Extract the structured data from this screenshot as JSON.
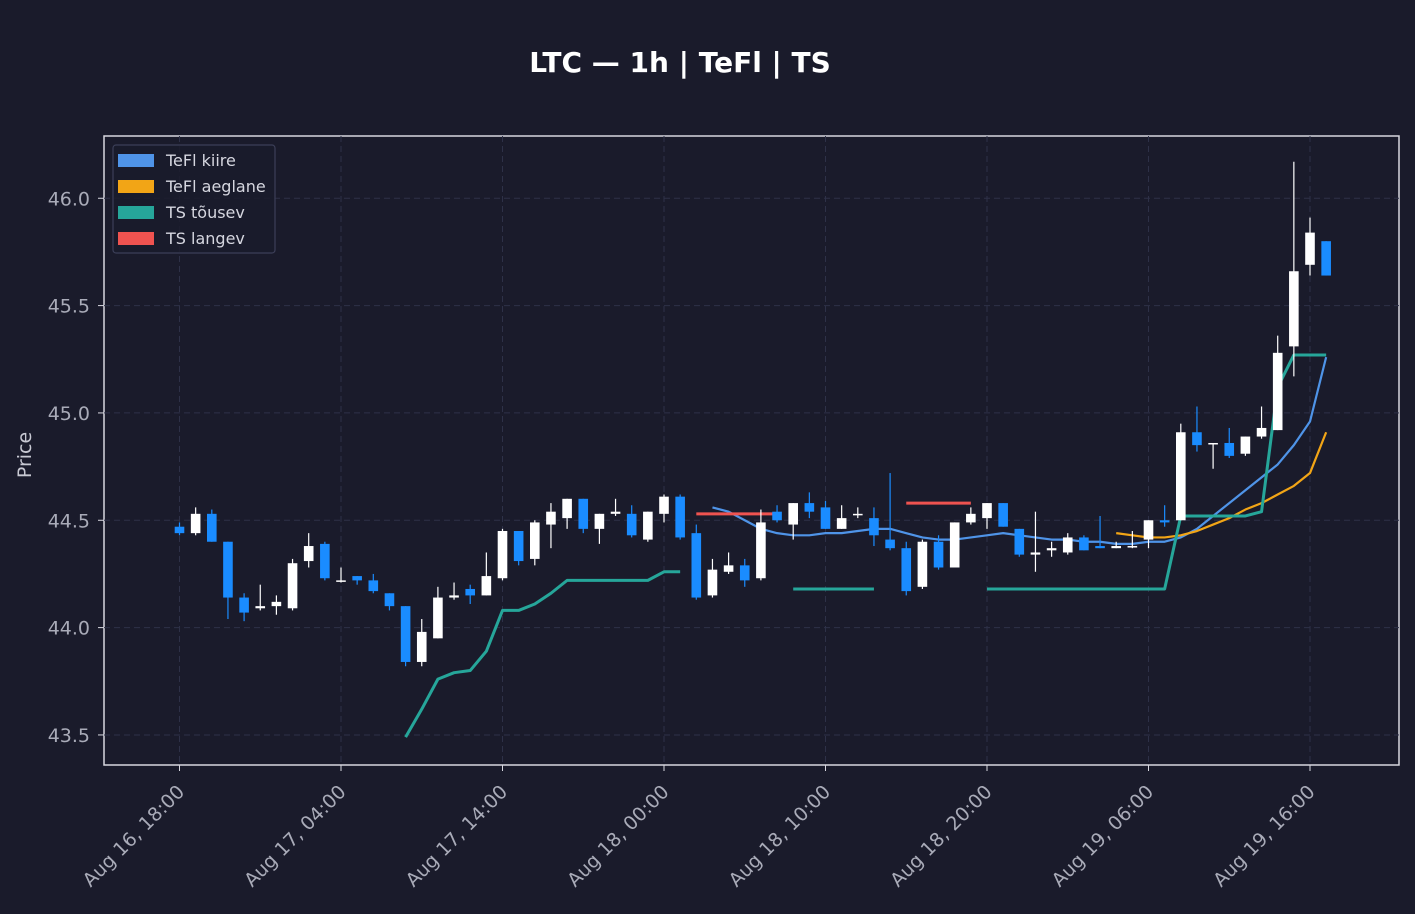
{
  "chart_data": {
    "type": "candlestick",
    "title": "LTC — 1h  |  TeFl  |  TS",
    "xlabel": "",
    "ylabel": "Price",
    "ylim": [
      43.36,
      46.29
    ],
    "y_ticks": [
      43.5,
      44.0,
      44.5,
      45.0,
      45.5,
      46.0
    ],
    "y_tick_labels": [
      "43.5",
      "44.0",
      "44.5",
      "45.0",
      "45.5",
      "46.0"
    ],
    "x_ticks": [
      0,
      10,
      20,
      30,
      40,
      50,
      60,
      70
    ],
    "x_tick_labels": [
      "Aug 16, 18:00",
      "Aug 17, 04:00",
      "Aug 17, 14:00",
      "Aug 18, 00:00",
      "Aug 18, 10:00",
      "Aug 18, 20:00",
      "Aug 19, 06:00",
      "Aug 19, 16:00"
    ],
    "x_start": "Aug 16, 18:00",
    "interval": "1h",
    "grid": true,
    "legend_position": "top-left",
    "colors": {
      "up": "#ffffff",
      "down": "#1a8cff",
      "fast": "#4f94e8",
      "slow": "#f2a516",
      "ts_up": "#26a69a",
      "ts_down": "#ef5350",
      "background": "#1a1b2b",
      "grid": "#2e3148",
      "frame": "#d8d8e0"
    },
    "legend": [
      {
        "label": "TeFl kiire",
        "color": "#4f94e8"
      },
      {
        "label": "TeFl aeglane",
        "color": "#f2a516"
      },
      {
        "label": "TS tõusev",
        "color": "#26a69a"
      },
      {
        "label": "TS langev",
        "color": "#ef5350"
      }
    ],
    "candles": [
      [
        44.47,
        44.49,
        44.43,
        44.44
      ],
      [
        44.44,
        44.56,
        44.43,
        44.53
      ],
      [
        44.53,
        44.55,
        44.4,
        44.4
      ],
      [
        44.4,
        44.4,
        44.04,
        44.14
      ],
      [
        44.14,
        44.16,
        44.03,
        44.07
      ],
      [
        44.09,
        44.2,
        44.08,
        44.1
      ],
      [
        44.1,
        44.15,
        44.06,
        44.12
      ],
      [
        44.09,
        44.32,
        44.08,
        44.3
      ],
      [
        44.31,
        44.44,
        44.28,
        44.38
      ],
      [
        44.39,
        44.4,
        44.22,
        44.23
      ],
      [
        44.22,
        44.28,
        44.21,
        44.22
      ],
      [
        44.24,
        44.24,
        44.2,
        44.22
      ],
      [
        44.22,
        44.25,
        44.16,
        44.17
      ],
      [
        44.16,
        44.16,
        44.08,
        44.1
      ],
      [
        44.1,
        44.1,
        43.82,
        43.84
      ],
      [
        43.84,
        44.04,
        43.82,
        43.98
      ],
      [
        43.95,
        44.19,
        43.95,
        44.14
      ],
      [
        44.14,
        44.21,
        44.13,
        44.15
      ],
      [
        44.18,
        44.2,
        44.11,
        44.15
      ],
      [
        44.15,
        44.35,
        44.15,
        44.24
      ],
      [
        44.23,
        44.46,
        44.22,
        44.45
      ],
      [
        44.45,
        44.45,
        44.29,
        44.31
      ],
      [
        44.32,
        44.5,
        44.29,
        44.49
      ],
      [
        44.48,
        44.58,
        44.37,
        44.54
      ],
      [
        44.51,
        44.6,
        44.46,
        44.6
      ],
      [
        44.6,
        44.6,
        44.44,
        44.46
      ],
      [
        44.46,
        44.53,
        44.39,
        44.53
      ],
      [
        44.53,
        44.6,
        44.52,
        44.54
      ],
      [
        44.53,
        44.57,
        44.42,
        44.43
      ],
      [
        44.41,
        44.54,
        44.4,
        44.54
      ],
      [
        44.53,
        44.62,
        44.49,
        44.61
      ],
      [
        44.61,
        44.62,
        44.41,
        44.42
      ],
      [
        44.44,
        44.48,
        44.13,
        44.14
      ],
      [
        44.15,
        44.32,
        44.14,
        44.27
      ],
      [
        44.26,
        44.35,
        44.25,
        44.29
      ],
      [
        44.29,
        44.32,
        44.19,
        44.22
      ],
      [
        44.23,
        44.55,
        44.22,
        44.49
      ],
      [
        44.54,
        44.57,
        44.49,
        44.5
      ],
      [
        44.48,
        44.58,
        44.41,
        44.58
      ],
      [
        44.58,
        44.63,
        44.51,
        44.54
      ],
      [
        44.56,
        44.59,
        44.46,
        44.46
      ],
      [
        44.46,
        44.57,
        44.46,
        44.51
      ],
      [
        44.53,
        44.56,
        44.51,
        44.53
      ],
      [
        44.51,
        44.56,
        44.38,
        44.43
      ],
      [
        44.41,
        44.72,
        44.36,
        44.37
      ],
      [
        44.37,
        44.4,
        44.15,
        44.17
      ],
      [
        44.19,
        44.41,
        44.18,
        44.4
      ],
      [
        44.4,
        44.43,
        44.27,
        44.28
      ],
      [
        44.28,
        44.49,
        44.28,
        44.49
      ],
      [
        44.49,
        44.56,
        44.48,
        44.53
      ],
      [
        44.51,
        44.58,
        44.46,
        44.58
      ],
      [
        44.58,
        44.58,
        44.47,
        44.47
      ],
      [
        44.46,
        44.46,
        44.33,
        44.34
      ],
      [
        44.34,
        44.54,
        44.26,
        44.35
      ],
      [
        44.36,
        44.4,
        44.33,
        44.37
      ],
      [
        44.35,
        44.44,
        44.34,
        44.42
      ],
      [
        44.42,
        44.43,
        44.36,
        44.36
      ],
      [
        44.38,
        44.52,
        44.37,
        44.37
      ],
      [
        44.37,
        44.4,
        44.37,
        44.38
      ],
      [
        44.38,
        44.45,
        44.37,
        44.38
      ],
      [
        44.41,
        44.5,
        44.37,
        44.5
      ],
      [
        44.5,
        44.57,
        44.47,
        44.49
      ],
      [
        44.5,
        44.95,
        44.5,
        44.91
      ],
      [
        44.91,
        45.03,
        44.82,
        44.85
      ],
      [
        44.86,
        44.86,
        44.74,
        44.86
      ],
      [
        44.86,
        44.93,
        44.79,
        44.8
      ],
      [
        44.81,
        44.89,
        44.8,
        44.89
      ],
      [
        44.89,
        45.03,
        44.88,
        44.93
      ],
      [
        44.92,
        45.36,
        44.92,
        45.28
      ],
      [
        45.31,
        46.17,
        45.17,
        45.66
      ],
      [
        45.69,
        45.91,
        45.64,
        45.84
      ],
      [
        45.8,
        45.8,
        45.64,
        45.64
      ]
    ],
    "series": [
      {
        "name": "TeFl kiire",
        "color": "#4f94e8",
        "x": [
          33,
          34,
          35,
          36,
          37,
          38,
          39,
          40,
          41,
          42,
          43,
          44,
          45,
          46,
          47,
          48,
          49,
          50,
          51,
          52,
          53,
          54,
          55,
          56,
          57,
          58,
          59,
          60,
          61,
          62,
          63,
          64,
          65,
          66,
          67,
          68,
          69,
          70,
          71
        ],
        "values": [
          44.56,
          44.54,
          44.5,
          44.46,
          44.44,
          44.43,
          44.43,
          44.44,
          44.44,
          44.45,
          44.46,
          44.46,
          44.44,
          44.42,
          44.41,
          44.41,
          44.42,
          44.43,
          44.44,
          44.43,
          44.42,
          44.41,
          44.41,
          44.4,
          44.4,
          44.39,
          44.39,
          44.4,
          44.4,
          44.42,
          44.46,
          44.52,
          44.58,
          44.64,
          44.7,
          44.76,
          44.85,
          44.96,
          45.26
        ]
      },
      {
        "name": "TeFl aeglane",
        "color": "#f2a516",
        "x": [
          58,
          59,
          60,
          61,
          62,
          63,
          64,
          65,
          66,
          67,
          68,
          69,
          70,
          71
        ],
        "values": [
          44.44,
          44.43,
          44.42,
          44.42,
          44.43,
          44.45,
          44.48,
          44.51,
          44.55,
          44.58,
          44.62,
          44.66,
          44.72,
          44.91
        ]
      },
      {
        "name": "TS tõusev",
        "color": "#26a69a",
        "segments": [
          {
            "x": [
              14,
              15,
              16,
              17,
              18,
              19,
              20,
              21,
              22,
              23,
              24,
              25,
              26,
              27,
              28,
              29,
              30,
              31
            ],
            "values": [
              43.49,
              43.62,
              43.76,
              43.79,
              43.8,
              43.89,
              44.08,
              44.08,
              44.11,
              44.16,
              44.22,
              44.22,
              44.22,
              44.22,
              44.22,
              44.22,
              44.26,
              44.26
            ]
          },
          {
            "x": [
              38,
              39,
              40,
              41,
              42,
              43
            ],
            "values": [
              44.18,
              44.18,
              44.18,
              44.18,
              44.18,
              44.18
            ]
          },
          {
            "x": [
              50,
              51,
              52,
              53,
              54,
              55,
              56,
              57,
              58,
              59,
              60,
              61,
              62,
              63,
              64,
              65,
              66,
              67,
              68,
              69,
              70,
              71
            ],
            "values": [
              44.18,
              44.18,
              44.18,
              44.18,
              44.18,
              44.18,
              44.18,
              44.18,
              44.18,
              44.18,
              44.18,
              44.18,
              44.52,
              44.52,
              44.52,
              44.52,
              44.52,
              44.54,
              45.12,
              45.27,
              45.27,
              45.27
            ]
          }
        ]
      },
      {
        "name": "TS langev",
        "color": "#ef5350",
        "segments": [
          {
            "x": [
              32,
              33,
              34,
              35,
              36,
              37
            ],
            "values": [
              44.53,
              44.53,
              44.53,
              44.53,
              44.53,
              44.53
            ]
          },
          {
            "x": [
              45,
              46,
              47,
              48,
              49
            ],
            "values": [
              44.58,
              44.58,
              44.58,
              44.58,
              44.58
            ]
          }
        ]
      }
    ]
  }
}
